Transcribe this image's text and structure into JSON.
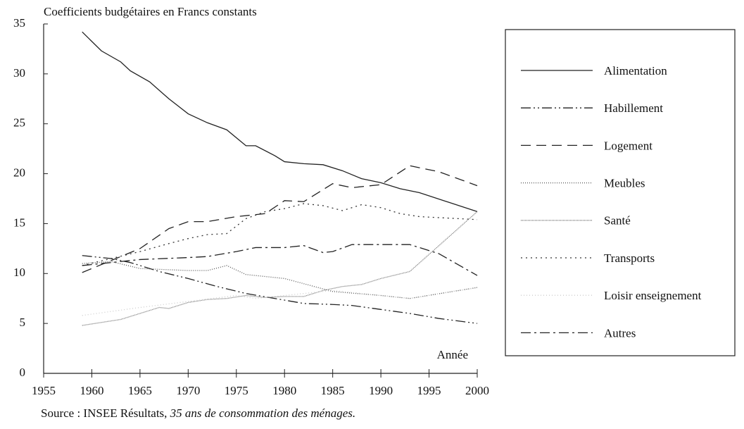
{
  "chart_data": {
    "type": "line",
    "y_axis_label": "Coefficients budgétaires en Francs constants",
    "x_axis_label": "Année",
    "source": {
      "prefix": "Source : INSEE Résultats, ",
      "title": "35 ans de consommation des ménages."
    },
    "xlim": [
      1955,
      2000
    ],
    "xticks": [
      1955,
      1960,
      1965,
      1970,
      1975,
      1980,
      1985,
      1990,
      1995,
      2000
    ],
    "ylim": [
      0,
      35
    ],
    "yticks": [
      0,
      5,
      10,
      15,
      20,
      25,
      30,
      35
    ],
    "grid": false,
    "legend": "right",
    "series": [
      {
        "name": "Alimentation",
        "color": "#222222",
        "dash": "none",
        "x": [
          1959,
          1961,
          1963,
          1964,
          1966,
          1968,
          1970,
          1972,
          1974,
          1976,
          1977,
          1979,
          1980,
          1982,
          1984,
          1986,
          1988,
          1990,
          1992,
          1994,
          2000
        ],
        "values": [
          34.2,
          32.3,
          31.2,
          30.3,
          29.2,
          27.5,
          26.0,
          25.1,
          24.4,
          22.8,
          22.8,
          21.8,
          21.2,
          21.0,
          20.9,
          20.3,
          19.5,
          19.1,
          18.5,
          18.1,
          16.2
        ]
      },
      {
        "name": "Habillement",
        "color": "#222222",
        "dash": "14,4,2,4,2,4",
        "x": [
          1959,
          1962,
          1964,
          1967,
          1970,
          1973,
          1976,
          1979,
          1982,
          1985,
          1987,
          1990,
          1993,
          1996,
          2000
        ],
        "values": [
          11.8,
          11.5,
          11.1,
          10.2,
          9.5,
          8.7,
          8.0,
          7.5,
          7.0,
          6.9,
          6.8,
          6.4,
          6.0,
          5.5,
          5.0
        ]
      },
      {
        "name": "Logement",
        "color": "#222222",
        "dash": "14,8",
        "x": [
          1959,
          1962,
          1965,
          1968,
          1970,
          1972,
          1975,
          1978,
          1980,
          1982,
          1985,
          1987,
          1990,
          1993,
          1996,
          2000
        ],
        "values": [
          10.1,
          11.3,
          12.5,
          14.5,
          15.2,
          15.2,
          15.7,
          16.0,
          17.3,
          17.2,
          19.0,
          18.6,
          18.9,
          20.8,
          20.2,
          18.8
        ]
      },
      {
        "name": "Meubles",
        "color": "#555555",
        "dash": "1,2",
        "x": [
          1959,
          1962,
          1965,
          1970,
          1972,
          1974,
          1976,
          1980,
          1985,
          1990,
          1993,
          2000
        ],
        "values": [
          11.0,
          11.2,
          10.5,
          10.3,
          10.3,
          10.8,
          9.9,
          9.5,
          8.2,
          7.8,
          7.5,
          8.6
        ]
      },
      {
        "name": "Santé",
        "color": "#777777",
        "dash": "1,1",
        "x": [
          1959,
          1961,
          1963,
          1965,
          1967,
          1968,
          1970,
          1972,
          1974,
          1976,
          1978,
          1980,
          1982,
          1984,
          1986,
          1988,
          1990,
          1993,
          2000
        ],
        "values": [
          4.8,
          5.1,
          5.4,
          6.0,
          6.6,
          6.5,
          7.1,
          7.4,
          7.5,
          7.8,
          7.6,
          7.7,
          7.7,
          8.3,
          8.7,
          8.9,
          9.5,
          10.2,
          16.2
        ]
      },
      {
        "name": "Transports",
        "color": "#333333",
        "dash": "2,5",
        "x": [
          1959,
          1962,
          1965,
          1968,
          1970,
          1972,
          1974,
          1976,
          1978,
          1980,
          1982,
          1984,
          1986,
          1988,
          1990,
          1992,
          1994,
          2000
        ],
        "values": [
          10.8,
          11.5,
          12.2,
          13.0,
          13.5,
          13.9,
          14.0,
          15.5,
          16.2,
          16.5,
          17.0,
          16.8,
          16.3,
          16.9,
          16.6,
          16.0,
          15.7,
          15.4
        ]
      },
      {
        "name": "Loisir enseignement",
        "color": "#cccccc",
        "dash": "1,3",
        "x": [
          1959,
          1965,
          1970,
          1975,
          1977,
          1980,
          1985,
          1990,
          1993,
          2000
        ],
        "values": [
          5.8,
          6.6,
          7.2,
          7.8,
          7.5,
          7.8,
          8.3,
          7.8,
          7.5,
          8.6
        ]
      },
      {
        "name": "Autres",
        "color": "#222222",
        "dash": "14,5,3,5",
        "x": [
          1959,
          1962,
          1965,
          1970,
          1972,
          1975,
          1977,
          1980,
          1982,
          1984,
          1985,
          1987,
          1990,
          1993,
          1996,
          2000
        ],
        "values": [
          10.8,
          11.1,
          11.4,
          11.6,
          11.7,
          12.2,
          12.6,
          12.6,
          12.8,
          12.1,
          12.2,
          12.9,
          12.9,
          12.9,
          12.0,
          9.8
        ]
      }
    ]
  }
}
